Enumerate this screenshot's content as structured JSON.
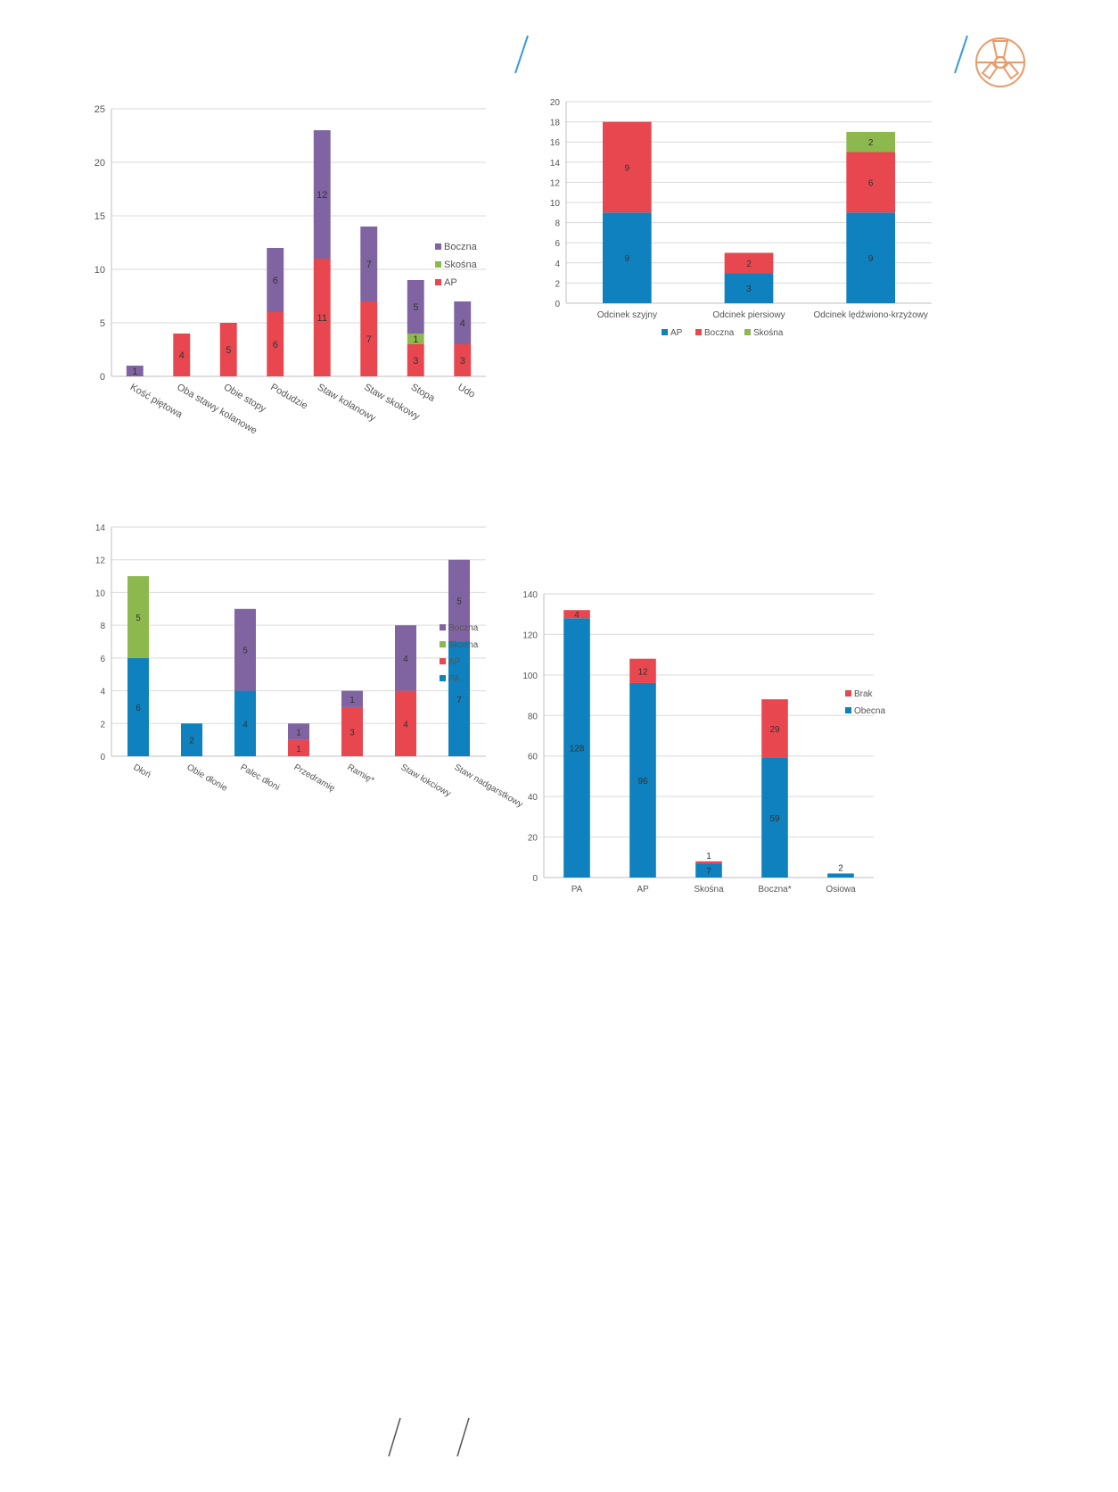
{
  "colors": {
    "boczna": "#8064A2",
    "skosna": "#8DB84E",
    "ap": "#E8474F",
    "pa": "#0E81BE",
    "brak": "#E8474F",
    "obecna": "#0E81BE",
    "grid": "#D9D9D9",
    "text": "#555555",
    "deco_slash": "#3A9BD6",
    "logo": "#E89B6A"
  },
  "header": {
    "logo_icon": "radiation-logo-icon"
  },
  "chart_data": [
    {
      "type": "bar",
      "stacked": true,
      "categories": [
        "Kość piętowa",
        "Oba stawy kolanowe",
        "Obie stopy",
        "Podudzie",
        "Staw kolanowy",
        "Staw skokowy",
        "Stopa",
        "Udo"
      ],
      "series": [
        {
          "name": "AP",
          "key": "ap",
          "values": [
            0,
            4,
            5,
            6,
            11,
            7,
            3,
            3
          ]
        },
        {
          "name": "Skośna",
          "key": "skosna",
          "values": [
            0,
            0,
            0,
            0,
            0,
            0,
            1,
            0
          ]
        },
        {
          "name": "Boczna",
          "key": "boczna",
          "values": [
            1,
            0,
            0,
            6,
            12,
            7,
            5,
            4
          ]
        }
      ],
      "legend_order": [
        "Boczna",
        "Skośna",
        "AP"
      ],
      "legend_keys": [
        "boczna",
        "skosna",
        "ap"
      ],
      "legend_position": "right",
      "ylim": [
        0,
        25
      ],
      "yticks": [
        "0",
        "5",
        "10",
        "15",
        "20",
        "25"
      ],
      "title": "",
      "xlabel": "",
      "ylabel": "",
      "grid": true,
      "tick_rotation": 30
    },
    {
      "type": "bar",
      "stacked": true,
      "categories": [
        "Odcinek szyjny",
        "Odcinek piersiowy",
        "Odcinek lędźwiono-krzyżowy"
      ],
      "series": [
        {
          "name": "AP",
          "key": "pa",
          "values": [
            9,
            3,
            9
          ]
        },
        {
          "name": "Boczna",
          "key": "ap",
          "values": [
            9,
            2,
            6
          ]
        },
        {
          "name": "Skośna",
          "key": "skosna",
          "values": [
            0,
            0,
            2
          ]
        }
      ],
      "legend_order": [
        "AP",
        "Boczna",
        "Skośna"
      ],
      "legend_keys": [
        "pa",
        "ap",
        "skosna"
      ],
      "legend_position": "bottom",
      "ylim": [
        0,
        20
      ],
      "yticks": [
        "0",
        "2",
        "4",
        "6",
        "8",
        "10",
        "12",
        "14",
        "16",
        "18",
        "20"
      ],
      "title": "",
      "xlabel": "",
      "ylabel": "",
      "grid": true,
      "tick_rotation": 0
    },
    {
      "type": "bar",
      "stacked": true,
      "categories": [
        "Dłoń",
        "Obie dłonie",
        "Palec dłoni",
        "Przedramię",
        "Ramię*",
        "Staw łokciowy",
        "Staw nadgarstkowy"
      ],
      "series": [
        {
          "name": "PA",
          "key": "pa",
          "values": [
            6,
            2,
            4,
            0,
            0,
            0,
            7
          ]
        },
        {
          "name": "AP",
          "key": "ap",
          "values": [
            0,
            0,
            0,
            1,
            3,
            4,
            0
          ]
        },
        {
          "name": "Skośna",
          "key": "skosna",
          "values": [
            5,
            0,
            0,
            0,
            0,
            0,
            0
          ]
        },
        {
          "name": "Boczna",
          "key": "boczna",
          "values": [
            0,
            0,
            5,
            1,
            1,
            4,
            5
          ]
        }
      ],
      "legend_order": [
        "Boczna",
        "Skośna",
        "AP",
        "PA"
      ],
      "legend_keys": [
        "boczna",
        "skosna",
        "ap",
        "pa"
      ],
      "legend_position": "right",
      "ylim": [
        0,
        14
      ],
      "yticks": [
        "0",
        "2",
        "4",
        "6",
        "8",
        "10",
        "12",
        "14"
      ],
      "title": "",
      "xlabel": "",
      "ylabel": "",
      "grid": true,
      "tick_rotation": 30
    },
    {
      "type": "bar",
      "stacked": true,
      "categories": [
        "PA",
        "AP",
        "Skośna",
        "Boczna*",
        "Osiowa"
      ],
      "series": [
        {
          "name": "Obecna",
          "key": "obecna",
          "values": [
            128,
            96,
            7,
            59,
            2
          ]
        },
        {
          "name": "Brak",
          "key": "brak",
          "values": [
            4,
            12,
            1,
            29,
            0
          ]
        }
      ],
      "legend_order": [
        "Brak",
        "Obecna"
      ],
      "legend_keys": [
        "brak",
        "obecna"
      ],
      "legend_position": "right",
      "ylim": [
        0,
        140
      ],
      "yticks": [
        "0",
        "20",
        "40",
        "60",
        "80",
        "100",
        "120",
        "140"
      ],
      "title": "",
      "xlabel": "",
      "ylabel": "",
      "grid": true,
      "tick_rotation": 0
    }
  ]
}
